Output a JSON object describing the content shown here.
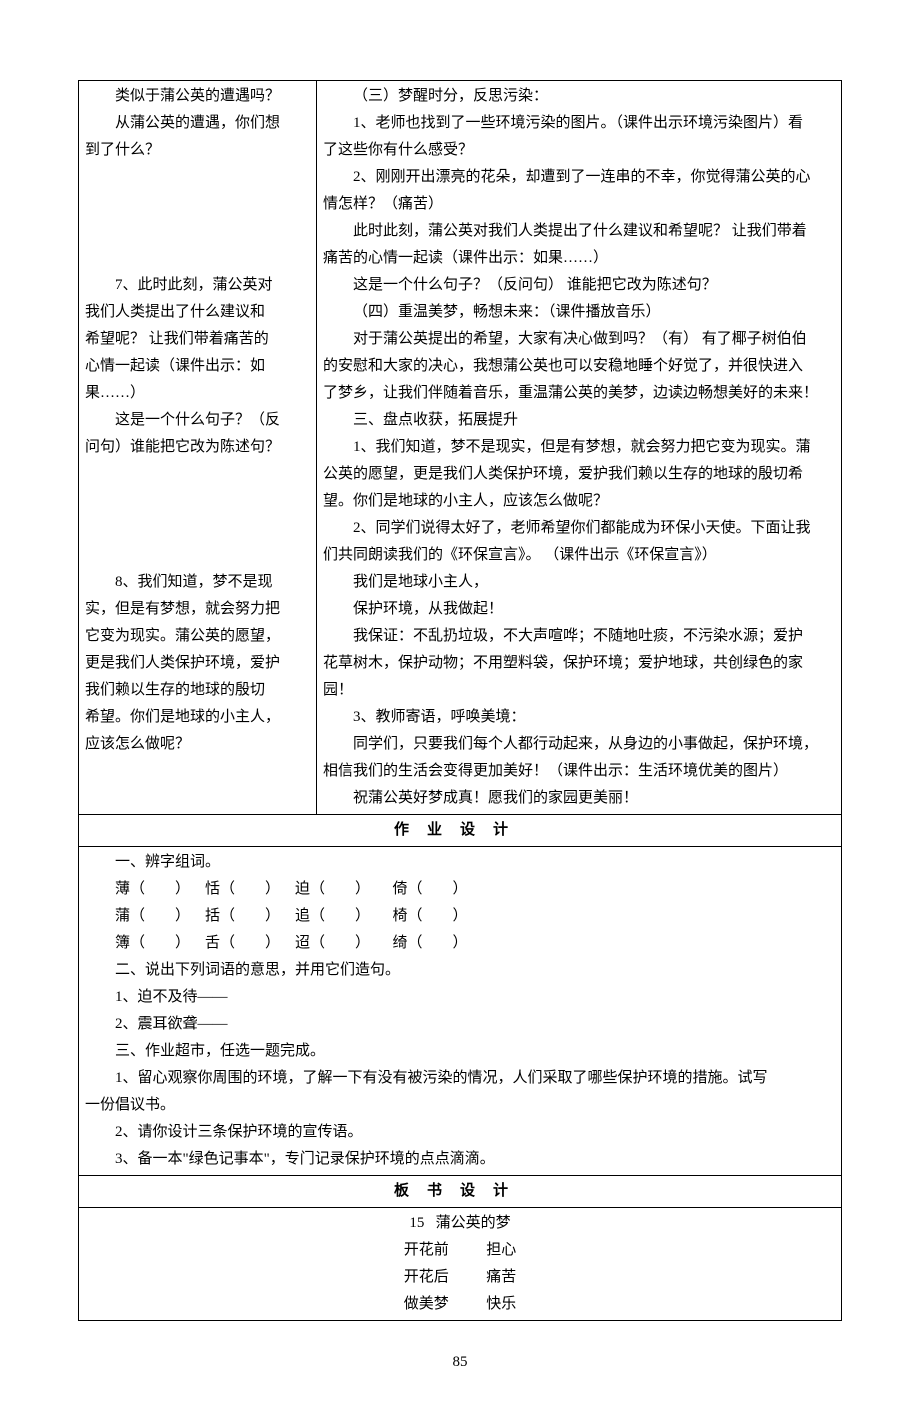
{
  "topRow": {
    "left": [
      {
        "t": "类似于蒲公英的遭遇吗？",
        "i": true
      },
      {
        "t": "从蒲公英的遭遇，你们想",
        "i": true
      },
      {
        "t": "到了什么？",
        "i": false
      },
      {
        "t": "",
        "i": false
      },
      {
        "t": "",
        "i": false
      },
      {
        "t": "",
        "i": false
      },
      {
        "t": "",
        "i": false
      },
      {
        "t": "7、此时此刻，蒲公英对",
        "i": true
      },
      {
        "t": "我们人类提出了什么建议和",
        "i": false
      },
      {
        "t": "希望呢？ 让我们带着痛苦的",
        "i": false
      },
      {
        "t": "心情一起读（课件出示：如",
        "i": false
      },
      {
        "t": "果……）",
        "i": false
      },
      {
        "t": "这是一个什么句子？（反",
        "i": true
      },
      {
        "t": "问句）谁能把它改为陈述句？",
        "i": false
      },
      {
        "t": "",
        "i": false
      },
      {
        "t": "",
        "i": false
      },
      {
        "t": "",
        "i": false
      },
      {
        "t": "",
        "i": false
      },
      {
        "t": "8、我们知道，梦不是现",
        "i": true
      },
      {
        "t": "实，但是有梦想，就会努力把",
        "i": false
      },
      {
        "t": "它变为现实。蒲公英的愿望，",
        "i": false
      },
      {
        "t": "更是我们人类保护环境，爱护",
        "i": false
      },
      {
        "t": "我们赖以生存的地球的殷切",
        "i": false
      },
      {
        "t": "希望。你们是地球的小主人，",
        "i": false
      },
      {
        "t": "应该怎么做呢？",
        "i": false
      }
    ],
    "right": [
      {
        "t": "（三）梦醒时分，反思污染：",
        "i": true
      },
      {
        "t": "1、老师也找到了一些环境污染的图片。（课件出示环境污染图片）看",
        "i": true
      },
      {
        "t": "了这些你有什么感受？",
        "i": false
      },
      {
        "t": "2、刚刚开出漂亮的花朵，却遭到了一连串的不幸，你觉得蒲公英的心",
        "i": true
      },
      {
        "t": "情怎样？（痛苦）",
        "i": false
      },
      {
        "t": "此时此刻，蒲公英对我们人类提出了什么建议和希望呢？ 让我们带着",
        "i": true
      },
      {
        "t": "痛苦的心情一起读（课件出示：如果……）",
        "i": false
      },
      {
        "t": "这是一个什么句子？（反问句） 谁能把它改为陈述句？",
        "i": true
      },
      {
        "t": "（四）重温美梦，畅想未来：（课件播放音乐）",
        "i": true
      },
      {
        "t": "对于蒲公英提出的希望，大家有决心做到吗？（有） 有了椰子树伯伯",
        "i": true
      },
      {
        "t": "的安慰和大家的决心，我想蒲公英也可以安稳地睡个好觉了，并很快进入",
        "i": false
      },
      {
        "t": "了梦乡，让我们伴随着音乐，重温蒲公英的美梦，边读边畅想美好的未来！",
        "i": false
      },
      {
        "t": "三、盘点收获，拓展提升",
        "i": true
      },
      {
        "t": "1、我们知道，梦不是现实，但是有梦想，就会努力把它变为现实。蒲",
        "i": true
      },
      {
        "t": "公英的愿望，更是我们人类保护环境，爱护我们赖以生存的地球的殷切希",
        "i": false
      },
      {
        "t": "望。你们是地球的小主人，应该怎么做呢？",
        "i": false
      },
      {
        "t": "2、同学们说得太好了，老师希望你们都能成为环保小天使。下面让我",
        "i": true
      },
      {
        "t": "们共同朗读我们的《环保宣言》。 （课件出示《环保宣言》）",
        "i": false
      },
      {
        "t": "我们是地球小主人，",
        "i": true
      },
      {
        "t": "保护环境，从我做起！",
        "i": true
      },
      {
        "t": "我保证：不乱扔垃圾，不大声喧哗；不随地吐痰，不污染水源；爱护",
        "i": true
      },
      {
        "t": "花草树木，保护动物；不用塑料袋，保护环境；爱护地球，共创绿色的家",
        "i": false
      },
      {
        "t": "园！",
        "i": false
      },
      {
        "t": "3、教师寄语，呼唤美境：",
        "i": true
      },
      {
        "t": "同学们，只要我们每个人都行动起来，从身边的小事做起，保护环境，",
        "i": true
      },
      {
        "t": "相信我们的生活会变得更加美好！（课件出示：生活环境优美的图片）",
        "i": false
      },
      {
        "t": "祝蒲公英好梦成真！愿我们的家园更美丽！",
        "i": true
      }
    ]
  },
  "hwHeader": "作业设计",
  "homework": {
    "line1": "一、辨字组词。",
    "rows": [
      "薄（        ）    恬（        ）    迫（        ）      倚（        ）",
      "蒲（        ）    括（        ）    追（        ）      椅（        ）",
      "簿（        ）    舌（        ）    迢（        ）      绮（        ）"
    ],
    "line2": "二、说出下列词语的意思，并用它们造句。",
    "line3": "1、迫不及待——",
    "line4": "2、震耳欲聋——",
    "line5": "三、作业超市，任选一题完成。",
    "line6a": "1、留心观察你周围的环境，了解一下有没有被污染的情况，人们采取了哪些保护环境的措施。试写",
    "line6b": "一份倡议书。",
    "line7": "2、请你设计三条保护环境的宣传语。",
    "line8": "3、备一本\"绿色记事本\"，专门记录保护环境的点点滴滴。"
  },
  "boardHeader": "板书设计",
  "board": {
    "title": "15   蒲公英的梦",
    "r1": "开花前          担心",
    "r2": "开花后          痛苦",
    "r3": "做美梦          快乐"
  },
  "pageNumber": "85"
}
